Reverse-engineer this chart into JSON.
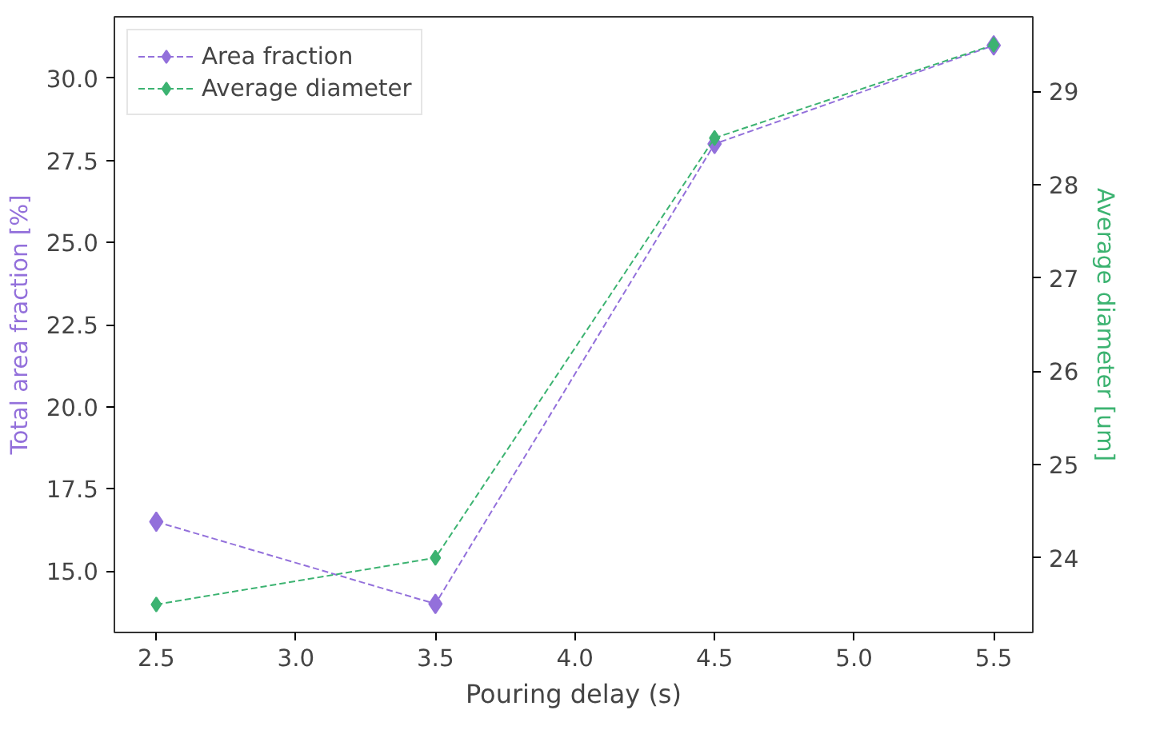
{
  "chart_data": {
    "type": "line",
    "xlabel": "Pouring delay (s)",
    "ylabel": "Total area fraction [%]",
    "y2label": "Average diameter [um]",
    "x": [
      2.5,
      3.5,
      4.5,
      5.5
    ],
    "series": [
      {
        "name": "Area fraction",
        "color": "#9370db",
        "values": [
          16.5,
          14.0,
          28.0,
          31.0
        ]
      },
      {
        "name": "Average diameter",
        "color": "#3cb371",
        "values": [
          23.5,
          24.0,
          28.5,
          29.5
        ],
        "axis": "y2"
      }
    ],
    "xlim": [
      2.35,
      5.64
    ],
    "xticks": [
      {
        "value": 2.5,
        "label": "2.5"
      },
      {
        "value": 3.0,
        "label": "3.0"
      },
      {
        "value": 3.5,
        "label": "3.5"
      },
      {
        "value": 4.0,
        "label": "4.0"
      },
      {
        "value": 4.5,
        "label": "4.5"
      },
      {
        "value": 5.0,
        "label": "5.0"
      },
      {
        "value": 5.5,
        "label": "5.5"
      }
    ],
    "ylim": [
      13.13,
      31.87
    ],
    "yticks": [
      {
        "value": 15,
        "label": "15.0"
      },
      {
        "value": 17.5,
        "label": "17.5"
      },
      {
        "value": 20,
        "label": "20.0"
      },
      {
        "value": 22.5,
        "label": "22.5"
      },
      {
        "value": 25,
        "label": "25.0"
      },
      {
        "value": 27.5,
        "label": "27.5"
      },
      {
        "value": 30,
        "label": "30.0"
      }
    ],
    "y2lim": [
      23.2,
      29.8
    ],
    "y2ticks": [
      24,
      25,
      26,
      27,
      28,
      29
    ],
    "marker": "diamond",
    "line_style": "dashed",
    "legend": "top left",
    "grid": false
  }
}
